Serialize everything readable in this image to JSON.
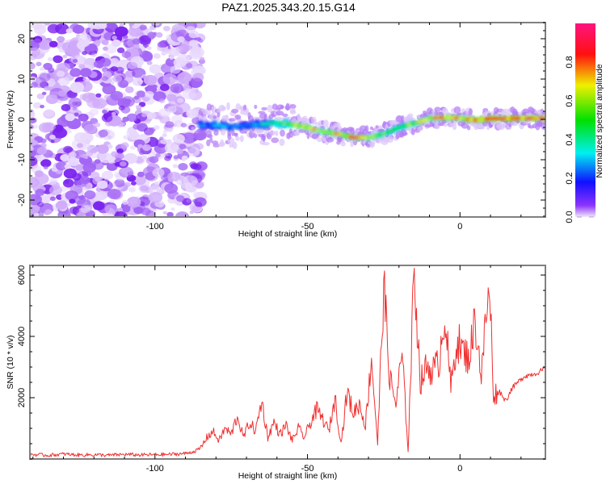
{
  "figure": {
    "title": "PAZ1.2025.343.20.15.G14"
  },
  "chart_data": [
    {
      "type": "heatmap",
      "name": "spectrogram",
      "title": "PAZ1.2025.343.20.15.G14",
      "xlabel": "Height of straight line (km)",
      "ylabel": "Frequency (Hz)",
      "xlim": [
        -141,
        28
      ],
      "ylim": [
        -24.2,
        24
      ],
      "xticks": [
        -100,
        -50,
        0
      ],
      "xtick_labels": [
        "-100",
        "-50",
        "0"
      ],
      "yticks": [
        -20,
        -10,
        0,
        10,
        20
      ],
      "ytick_labels": [
        "-20",
        "-10",
        "0",
        "10",
        "20"
      ],
      "noise_region_x": [
        -141,
        -86
      ],
      "ridge": {
        "description": "Signal ridge (normalized spectral amplitude peak) frequency vs height",
        "x": [
          -85,
          -80,
          -75,
          -70,
          -65,
          -60,
          -55,
          -50,
          -45,
          -40,
          -35,
          -30,
          -25,
          -20,
          -15,
          -10,
          -5,
          0,
          5,
          10,
          15,
          20,
          25,
          28
        ],
        "frequency_hz": [
          -1.5,
          -1.5,
          -1.8,
          -1.5,
          -1.2,
          -0.8,
          -1.2,
          -2.0,
          -3.0,
          -3.6,
          -4.5,
          -4.5,
          -3.6,
          -2.0,
          -1.0,
          0.2,
          0.5,
          0.3,
          -0.2,
          0.2,
          0.2,
          0.3,
          0.3,
          0.3
        ],
        "amplitude": [
          0.25,
          0.3,
          0.3,
          0.3,
          0.35,
          0.5,
          0.7,
          0.75,
          0.7,
          0.75,
          0.85,
          0.75,
          0.6,
          0.55,
          0.7,
          0.75,
          0.8,
          0.8,
          0.85,
          0.9,
          0.9,
          0.9,
          0.9,
          0.9
        ]
      }
    },
    {
      "type": "colorbar",
      "name": "colorbar",
      "label": "Normalized spectral amplitude",
      "range": [
        0.0,
        1.0
      ],
      "ticks": [
        0.0,
        0.2,
        0.4,
        0.6,
        0.8
      ],
      "tick_labels": [
        "0.0",
        "0.2",
        "0.4",
        "0.6",
        "0.8"
      ],
      "colormap_stops": [
        {
          "value": 0.0,
          "color": "#f2e6ff"
        },
        {
          "value": 0.06,
          "color": "#8c33ff"
        },
        {
          "value": 0.18,
          "color": "#1010ff"
        },
        {
          "value": 0.33,
          "color": "#00f0f0"
        },
        {
          "value": 0.5,
          "color": "#00e000"
        },
        {
          "value": 0.68,
          "color": "#f0f000"
        },
        {
          "value": 0.84,
          "color": "#ff1010"
        },
        {
          "value": 1.0,
          "color": "#ff1480"
        }
      ]
    },
    {
      "type": "line",
      "name": "snr",
      "xlabel": "Height of straight line (km)",
      "ylabel": "SNR (10 * v/v)",
      "xlim": [
        -141,
        28
      ],
      "ylim": [
        0,
        6316
      ],
      "xticks": [
        -100,
        -50,
        0
      ],
      "xtick_labels": [
        "-100",
        "-50",
        "0"
      ],
      "yticks": [
        2000,
        4000,
        6000
      ],
      "ytick_labels": [
        "2000",
        "4000",
        "6000"
      ],
      "color": "#f03030",
      "series": [
        {
          "name": "SNR",
          "x": [
            -141,
            -135,
            -130,
            -125,
            -120,
            -115,
            -110,
            -105,
            -100,
            -95,
            -90,
            -87,
            -85,
            -83,
            -81,
            -79,
            -77,
            -75,
            -73,
            -71,
            -69,
            -67,
            -65,
            -63,
            -61,
            -59,
            -57,
            -55,
            -53,
            -51,
            -49,
            -47,
            -45,
            -43,
            -41,
            -39,
            -37,
            -35,
            -33,
            -31,
            -29,
            -27,
            -25,
            -23,
            -21,
            -19,
            -17,
            -15,
            -13,
            -11,
            -9,
            -7,
            -5,
            -3,
            -1,
            1,
            3,
            5,
            7,
            9,
            10,
            11,
            13,
            15,
            17,
            19,
            21,
            23,
            25,
            28
          ],
          "y": [
            150,
            120,
            160,
            130,
            140,
            120,
            150,
            130,
            140,
            150,
            180,
            250,
            350,
            700,
            900,
            600,
            1000,
            800,
            1400,
            700,
            1200,
            900,
            1900,
            700,
            1200,
            800,
            1100,
            600,
            1000,
            700,
            1200,
            1600,
            1300,
            900,
            2000,
            500,
            2200,
            1500,
            1800,
            1100,
            3300,
            500,
            5700,
            2600,
            1800,
            3400,
            300,
            6300,
            2500,
            3000,
            2900,
            3100,
            4800,
            2300,
            3900,
            3500,
            3300,
            4600,
            2700,
            5200,
            4900,
            2100,
            2200,
            1900,
            2300,
            2500,
            2700,
            2750,
            2800,
            2950
          ]
        }
      ]
    }
  ]
}
